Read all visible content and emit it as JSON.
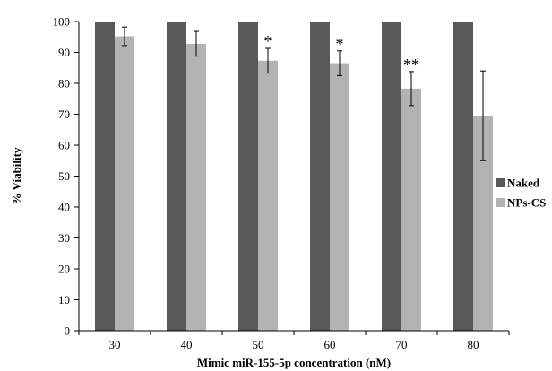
{
  "chart_data": {
    "type": "bar",
    "xlabel": "Mimic miR-155-5p concentration (nM)",
    "ylabel": "% Viability",
    "ylim": [
      0,
      100
    ],
    "yticks": [
      0,
      10,
      20,
      30,
      40,
      50,
      60,
      70,
      80,
      90,
      100
    ],
    "categories": [
      "30",
      "40",
      "50",
      "60",
      "70",
      "80"
    ],
    "grid": false,
    "legend_position": "right",
    "series": [
      {
        "name": "Naked",
        "color": "#595959",
        "values": [
          100,
          100,
          100,
          100,
          100,
          100
        ]
      },
      {
        "name": "NPs-CS",
        "color": "#b3b3b3",
        "values": [
          95.2,
          92.8,
          87.3,
          86.5,
          78.3,
          69.5
        ],
        "errors": [
          3.0,
          4.0,
          4.0,
          4.0,
          5.5,
          14.5
        ]
      }
    ],
    "annotations": [
      "",
      "",
      "*",
      "*",
      "**",
      ""
    ]
  }
}
